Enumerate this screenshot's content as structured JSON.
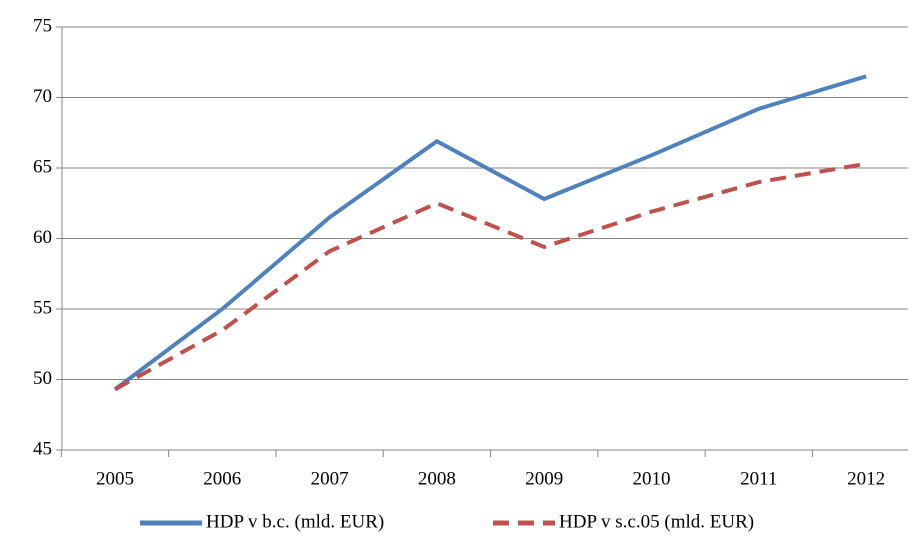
{
  "chart_data": {
    "type": "line",
    "categories": [
      "2005",
      "2006",
      "2007",
      "2008",
      "2009",
      "2010",
      "2011",
      "2012"
    ],
    "series": [
      {
        "name": "HDP v b.c. (mld. EUR)",
        "color": "#4f81bd",
        "dash": false,
        "values": [
          49.3,
          55.0,
          61.5,
          66.9,
          62.8,
          65.9,
          69.2,
          71.5
        ]
      },
      {
        "name": "HDP v s.c.05 (mld. EUR)",
        "color": "#c0504d",
        "dash": true,
        "values": [
          49.3,
          53.5,
          59.1,
          62.5,
          59.4,
          61.9,
          64.0,
          65.3
        ]
      }
    ],
    "ylim": [
      45,
      75
    ],
    "yticks": [
      45,
      50,
      55,
      60,
      65,
      70,
      75
    ],
    "grid": true,
    "legend": "bottom"
  }
}
